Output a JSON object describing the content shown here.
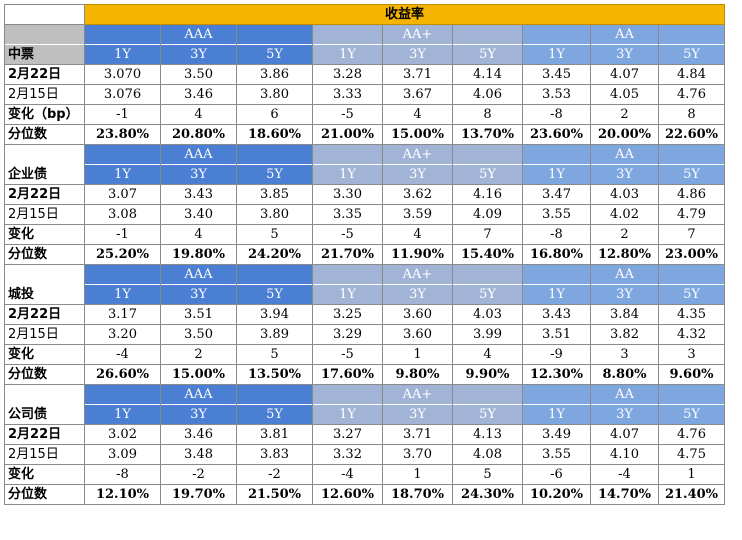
{
  "title": "收益率",
  "groups": [
    "AAA",
    "AA+",
    "AA"
  ],
  "tenors": [
    "1Y",
    "3Y",
    "5Y"
  ],
  "sections": [
    {
      "name": "中票",
      "rows": [
        {
          "label": "2月22日",
          "bold": true,
          "values": [
            "3.070",
            "3.50",
            "3.86",
            "3.28",
            "3.71",
            "4.14",
            "3.45",
            "4.07",
            "4.84"
          ]
        },
        {
          "label": "2月15日",
          "bold": false,
          "values": [
            "3.076",
            "3.46",
            "3.80",
            "3.33",
            "3.67",
            "4.06",
            "3.53",
            "4.05",
            "4.76"
          ]
        },
        {
          "label": "变化（bp）",
          "bold": true,
          "values": [
            "-1",
            "4",
            "6",
            "-5",
            "4",
            "8",
            "-8",
            "2",
            "8"
          ]
        },
        {
          "label": "分位数",
          "bold": true,
          "pct": true,
          "values": [
            "23.80%",
            "20.80%",
            "18.60%",
            "21.00%",
            "15.00%",
            "13.70%",
            "23.60%",
            "20.00%",
            "22.60%"
          ]
        }
      ]
    },
    {
      "name": "企业债",
      "rows": [
        {
          "label": "2月22日",
          "bold": true,
          "values": [
            "3.07",
            "3.43",
            "3.85",
            "3.30",
            "3.62",
            "4.16",
            "3.47",
            "4.03",
            "4.86"
          ]
        },
        {
          "label": "2月15日",
          "bold": false,
          "values": [
            "3.08",
            "3.40",
            "3.80",
            "3.35",
            "3.59",
            "4.09",
            "3.55",
            "4.02",
            "4.79"
          ]
        },
        {
          "label": "变化",
          "bold": true,
          "values": [
            "-1",
            "4",
            "5",
            "-5",
            "4",
            "7",
            "-8",
            "2",
            "7"
          ]
        },
        {
          "label": "分位数",
          "bold": true,
          "pct": true,
          "values": [
            "25.20%",
            "19.80%",
            "24.20%",
            "21.70%",
            "11.90%",
            "15.40%",
            "16.80%",
            "12.80%",
            "23.00%"
          ]
        }
      ]
    },
    {
      "name": "城投",
      "rows": [
        {
          "label": "2月22日",
          "bold": true,
          "values": [
            "3.17",
            "3.51",
            "3.94",
            "3.25",
            "3.60",
            "4.03",
            "3.43",
            "3.84",
            "4.35"
          ]
        },
        {
          "label": "2月15日",
          "bold": false,
          "values": [
            "3.20",
            "3.50",
            "3.89",
            "3.29",
            "3.60",
            "3.99",
            "3.51",
            "3.82",
            "4.32"
          ]
        },
        {
          "label": "变化",
          "bold": true,
          "values": [
            "-4",
            "2",
            "5",
            "-5",
            "1",
            "4",
            "-9",
            "3",
            "3"
          ]
        },
        {
          "label": "分位数",
          "bold": true,
          "pct": true,
          "values": [
            "26.60%",
            "15.00%",
            "13.50%",
            "17.60%",
            "9.80%",
            "9.90%",
            "12.30%",
            "8.80%",
            "9.60%"
          ]
        }
      ]
    },
    {
      "name": "公司债",
      "rows": [
        {
          "label": "2月22日",
          "bold": true,
          "values": [
            "3.02",
            "3.46",
            "3.81",
            "3.27",
            "3.71",
            "4.13",
            "3.49",
            "4.07",
            "4.76"
          ]
        },
        {
          "label": "2月15日",
          "bold": false,
          "values": [
            "3.09",
            "3.48",
            "3.83",
            "3.32",
            "3.70",
            "4.08",
            "3.55",
            "4.10",
            "4.75"
          ]
        },
        {
          "label": "变化",
          "bold": true,
          "values": [
            "-8",
            "-2",
            "-2",
            "-4",
            "1",
            "5",
            "-6",
            "-4",
            "1"
          ]
        },
        {
          "label": "分位数",
          "bold": true,
          "pct": true,
          "values": [
            "12.10%",
            "19.70%",
            "21.50%",
            "12.60%",
            "18.70%",
            "24.30%",
            "10.20%",
            "14.70%",
            "21.40%"
          ]
        }
      ]
    }
  ]
}
